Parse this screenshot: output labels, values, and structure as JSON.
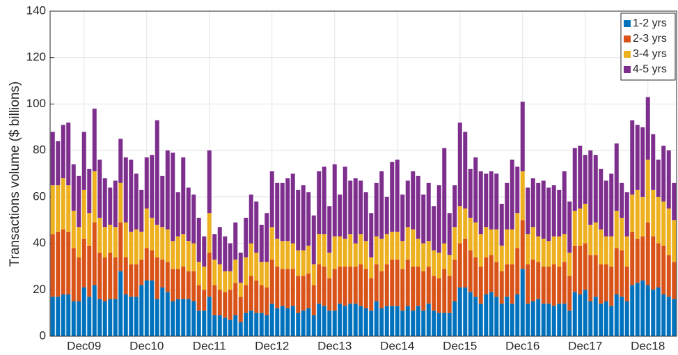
{
  "chart_data": {
    "type": "stacked_bar",
    "y_label": "Transactions volume ($ billions)",
    "categories": [
      null,
      null,
      null,
      null,
      null,
      null,
      "Dec09",
      null,
      null,
      null,
      null,
      null,
      null,
      null,
      null,
      null,
      null,
      null,
      "Dec10",
      null,
      null,
      null,
      null,
      null,
      null,
      null,
      null,
      null,
      null,
      null,
      "Dec11",
      null,
      null,
      null,
      null,
      null,
      null,
      null,
      null,
      null,
      null,
      null,
      "Dec12",
      null,
      null,
      null,
      null,
      null,
      null,
      null,
      null,
      null,
      null,
      null,
      "Dec13",
      null,
      null,
      null,
      null,
      null,
      null,
      null,
      null,
      null,
      null,
      null,
      "Dec14",
      null,
      null,
      null,
      null,
      null,
      null,
      null,
      null,
      null,
      null,
      null,
      "Dec15",
      null,
      null,
      null,
      null,
      null,
      null,
      null,
      null,
      null,
      null,
      null,
      "Dec16",
      null,
      null,
      null,
      null,
      null,
      null,
      null,
      null,
      null,
      null,
      null,
      "Dec17",
      null,
      null,
      null,
      null,
      null,
      null,
      null,
      null,
      null,
      null,
      null,
      "Dec18",
      null,
      null,
      null,
      null,
      null
    ],
    "series": [
      {
        "name": "1-2 yrs",
        "color": "#0072bd",
        "values": [
          17,
          17,
          18,
          18,
          15,
          15,
          21,
          17,
          22,
          16,
          15,
          16,
          16,
          28,
          18,
          17,
          17,
          22,
          24,
          24,
          16,
          21,
          19,
          15,
          16,
          16,
          16,
          15,
          11,
          11,
          17,
          9,
          9,
          8,
          7,
          9,
          6,
          10,
          11,
          10,
          10,
          9,
          14,
          12,
          13,
          12,
          13,
          10,
          11,
          12,
          9,
          14,
          13,
          11,
          11,
          14,
          13,
          14,
          14,
          13,
          12,
          11,
          15,
          12,
          13,
          13,
          13,
          11,
          13,
          11,
          13,
          11,
          14,
          11,
          10,
          10,
          10,
          15,
          21,
          21,
          19,
          17,
          14,
          18,
          19,
          17,
          14,
          17,
          14,
          18,
          29,
          14,
          15,
          16,
          14,
          14,
          13,
          14,
          14,
          11,
          19,
          18,
          20,
          15,
          17,
          14,
          15,
          13,
          18,
          17,
          15,
          22,
          23,
          24,
          22,
          20,
          21,
          18,
          17,
          16
        ]
      },
      {
        "name": "2-3 yrs",
        "color": "#d95319",
        "values": [
          27,
          28,
          28,
          27,
          23,
          19,
          21,
          22,
          27,
          20,
          19,
          20,
          18,
          21,
          16,
          14,
          14,
          11,
          14,
          13,
          18,
          12,
          13,
          14,
          13,
          14,
          12,
          13,
          11,
          9,
          19,
          13,
          11,
          11,
          13,
          14,
          11,
          12,
          15,
          14,
          12,
          12,
          19,
          18,
          16,
          17,
          16,
          16,
          15,
          15,
          13,
          17,
          17,
          14,
          18,
          16,
          17,
          16,
          16,
          18,
          17,
          14,
          16,
          16,
          18,
          20,
          20,
          18,
          20,
          19,
          17,
          17,
          16,
          15,
          15,
          19,
          16,
          18,
          19,
          21,
          18,
          17,
          16,
          16,
          16,
          15,
          14,
          14,
          17,
          20,
          21,
          17,
          18,
          16,
          16,
          16,
          18,
          16,
          18,
          15,
          20,
          21,
          20,
          20,
          18,
          17,
          16,
          17,
          20,
          20,
          15,
          23,
          19,
          19,
          27,
          23,
          19,
          21,
          18,
          16
        ]
      },
      {
        "name": "3-4 yrs",
        "color": "#edb120",
        "values": [
          21,
          20,
          22,
          20,
          16,
          13,
          21,
          14,
          22,
          15,
          13,
          12,
          13,
          17,
          15,
          14,
          15,
          12,
          17,
          14,
          14,
          14,
          14,
          12,
          14,
          14,
          13,
          12,
          10,
          10,
          17,
          11,
          11,
          9,
          8,
          10,
          6,
          12,
          14,
          12,
          10,
          11,
          14,
          12,
          12,
          12,
          11,
          11,
          11,
          12,
          9,
          13,
          14,
          11,
          14,
          13,
          12,
          14,
          10,
          13,
          12,
          9,
          12,
          14,
          13,
          12,
          12,
          12,
          14,
          16,
          12,
          12,
          11,
          11,
          11,
          11,
          9,
          14,
          16,
          13,
          14,
          15,
          14,
          13,
          11,
          14,
          11,
          15,
          15,
          15,
          21,
          13,
          14,
          11,
          12,
          11,
          12,
          13,
          12,
          10,
          15,
          16,
          17,
          13,
          14,
          15,
          12,
          13,
          16,
          14,
          13,
          16,
          21,
          17,
          27,
          20,
          20,
          19,
          20,
          18
        ]
      },
      {
        "name": "4-5 yrs",
        "color": "#7e2f8e",
        "values": [
          23,
          19,
          23,
          27,
          20,
          22,
          25,
          19,
          27,
          25,
          21,
          16,
          20,
          19,
          28,
          31,
          24,
          18,
          22,
          27,
          45,
          22,
          34,
          38,
          19,
          33,
          23,
          21,
          19,
          13,
          27,
          11,
          16,
          15,
          12,
          16,
          13,
          17,
          21,
          22,
          16,
          21,
          24,
          24,
          25,
          27,
          30,
          26,
          28,
          23,
          21,
          27,
          29,
          20,
          31,
          18,
          31,
          23,
          28,
          23,
          21,
          19,
          23,
          29,
          16,
          30,
          31,
          20,
          20,
          25,
          27,
          21,
          25,
          19,
          29,
          41,
          18,
          18,
          36,
          33,
          21,
          28,
          27,
          23,
          25,
          24,
          18,
          20,
          30,
          20,
          30,
          20,
          21,
          23,
          25,
          23,
          22,
          20,
          27,
          22,
          27,
          27,
          21,
          32,
          29,
          26,
          24,
          27,
          29,
          15,
          19,
          32,
          28,
          30,
          27,
          24,
          16,
          24,
          25,
          16
        ]
      }
    ],
    "ylim": [
      0,
      140
    ],
    "yticks": [
      0,
      20,
      40,
      60,
      80,
      100,
      120,
      140
    ],
    "grid": true,
    "legend": "upper right"
  }
}
